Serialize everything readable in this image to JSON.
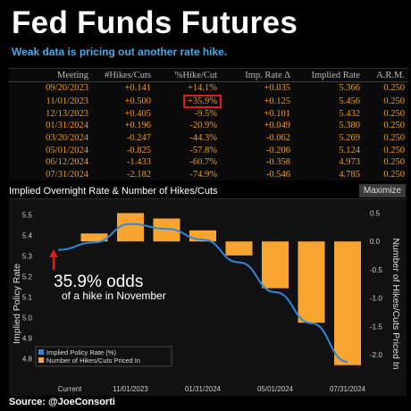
{
  "title": "Fed Funds Futures",
  "subtitle": "Weak data is pricing out another rate hike.",
  "table": {
    "headers": [
      "Meeting",
      "#Hikes/Cuts",
      "%Hike/Cut",
      "Imp. Rate Δ",
      "Implied Rate",
      "A.R.M."
    ],
    "rows": [
      [
        "09/20/2023",
        "+0.141",
        "+14.1%",
        "+0.035",
        "5.366",
        "0.250"
      ],
      [
        "11/01/2023",
        "+0.500",
        "+35.9%",
        "+0.125",
        "5.456",
        "0.250"
      ],
      [
        "12/13/2023",
        "+0.405",
        "-9.5%",
        "+0.101",
        "5.432",
        "0.250"
      ],
      [
        "01/31/2024",
        "+0.196",
        "-20.9%",
        "+0.049",
        "5.380",
        "0.250"
      ],
      [
        "03/20/2024",
        "-0.247",
        "-44.3%",
        "-0.062",
        "5.269",
        "0.250"
      ],
      [
        "05/01/2024",
        "-0.825",
        "-57.8%",
        "-0.206",
        "5.124",
        "0.250"
      ],
      [
        "06/12/2024",
        "-1.433",
        "-60.7%",
        "-0.358",
        "4.973",
        "0.250"
      ],
      [
        "07/31/2024",
        "-2.182",
        "-74.9%",
        "-0.546",
        "4.785",
        "0.250"
      ]
    ],
    "highlight": {
      "row": 1,
      "col": 2,
      "color": "#e01b1b"
    }
  },
  "chart_panel": {
    "title": "Implied Overnight Rate & Number of Hikes/Cuts",
    "maximize_label": "Maximize"
  },
  "annotation": {
    "big": "35.9% odds",
    "small": "of a hike in November",
    "arrow_color": "#e01b1b"
  },
  "chart_data": {
    "type": "bar",
    "categories": [
      "Current",
      "09/20/2023",
      "11/01/2023",
      "12/13/2023",
      "01/31/2024",
      "03/20/2024",
      "05/01/2024",
      "06/12/2024",
      "07/31/2024"
    ],
    "x_tick_labels": [
      "Current",
      "11/01/2023",
      "01/31/2024",
      "05/01/2024",
      "07/31/2024"
    ],
    "series": [
      {
        "name": "Implied Policy Rate (%)",
        "type": "line",
        "axis": "left",
        "color": "#2e86de",
        "values": [
          5.33,
          5.366,
          5.456,
          5.432,
          5.38,
          5.269,
          5.124,
          4.973,
          4.785
        ]
      },
      {
        "name": "Number of Hikes/Cuts Priced In",
        "type": "bar",
        "axis": "right",
        "color": "#f7a530",
        "values": [
          null,
          0.141,
          0.5,
          0.405,
          0.196,
          -0.247,
          -0.825,
          -1.433,
          -2.182
        ]
      }
    ],
    "ylabel": "Implied Policy Rate",
    "y2label": "Number of Hikes/Cuts Priced In",
    "ylim": [
      4.75,
      5.55
    ],
    "y2lim": [
      -2.25,
      0.65
    ],
    "yticks": [
      "5.5",
      "5.4",
      "5.3",
      "5.2",
      "5.1",
      "5.0",
      "4.9",
      "4.8"
    ],
    "y2ticks": [
      "0.5",
      "0.0",
      "-0.5",
      "-1.0",
      "-1.5",
      "-2.0"
    ],
    "legend_position": "bottom-left",
    "grid": false
  },
  "source": "Source: @JoeConsorti"
}
